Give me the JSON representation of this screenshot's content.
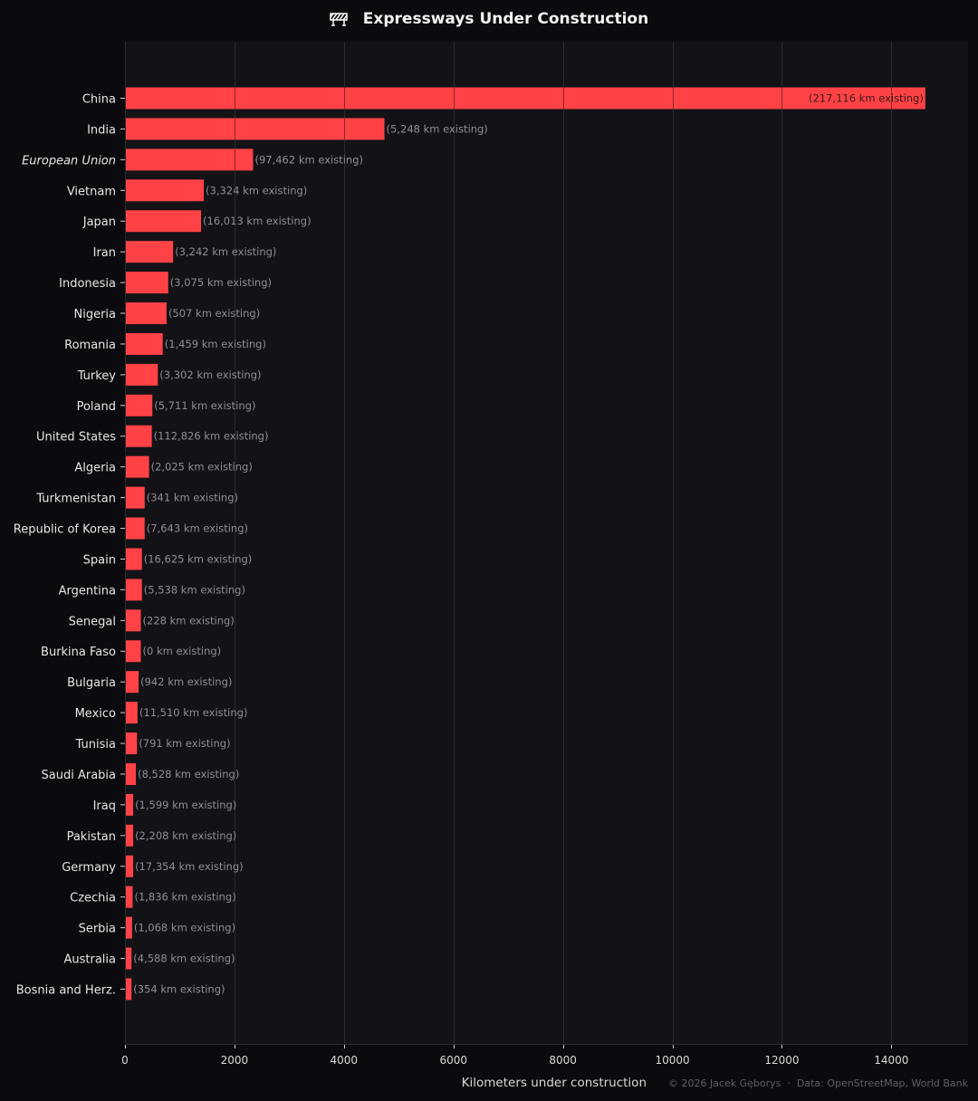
{
  "chart_data": {
    "type": "bar",
    "orientation": "horizontal",
    "title": "Expressways Under Construction",
    "title_icon": "construction-barrier-icon",
    "xlabel": "Kilometers under construction",
    "ylabel": "",
    "xlim": [
      0,
      15400
    ],
    "x_ticks": [
      0,
      2000,
      4000,
      6000,
      8000,
      10000,
      12000,
      14000
    ],
    "grid": "vertical",
    "credit": "© 2026 Jacek Gęborys  ·  Data: OpenStreetMap, World Bank",
    "colors": {
      "background": "#0b0b0f",
      "plot_background": "#121217",
      "bar": "#ff4245",
      "grid": "#2a2a31"
    },
    "categories": [
      "China",
      "India",
      "European Union",
      "Vietnam",
      "Japan",
      "Iran",
      "Indonesia",
      "Nigeria",
      "Romania",
      "Turkey",
      "Poland",
      "United States",
      "Algeria",
      "Turkmenistan",
      "Republic of Korea",
      "Spain",
      "Argentina",
      "Senegal",
      "Burkina Faso",
      "Bulgaria",
      "Mexico",
      "Tunisia",
      "Saudi Arabia",
      "Iraq",
      "Pakistan",
      "Germany",
      "Czechia",
      "Serbia",
      "Australia",
      "Bosnia and Herz."
    ],
    "italic_categories": [
      "European Union"
    ],
    "values": [
      14620,
      4740,
      2340,
      1440,
      1390,
      880,
      790,
      760,
      690,
      600,
      500,
      490,
      440,
      360,
      360,
      310,
      310,
      290,
      290,
      250,
      230,
      220,
      200,
      150,
      150,
      150,
      140,
      130,
      120,
      120
    ],
    "data_labels": [
      "(217,116 km existing)",
      "(5,248 km existing)",
      "(97,462 km existing)",
      "(3,324 km existing)",
      "(16,013 km existing)",
      "(3,242 km existing)",
      "(3,075 km existing)",
      "(507 km existing)",
      "(1,459 km existing)",
      "(3,302 km existing)",
      "(5,711 km existing)",
      "(112,826 km existing)",
      "(2,025 km existing)",
      "(341 km existing)",
      "(7,643 km existing)",
      "(16,625 km existing)",
      "(5,538 km existing)",
      "(228 km existing)",
      "(0 km existing)",
      "(942 km existing)",
      "(11,510 km existing)",
      "(791 km existing)",
      "(8,528 km existing)",
      "(1,599 km existing)",
      "(2,208 km existing)",
      "(17,354 km existing)",
      "(1,836 km existing)",
      "(1,068 km existing)",
      "(4,588 km existing)",
      "(354 km existing)"
    ]
  }
}
